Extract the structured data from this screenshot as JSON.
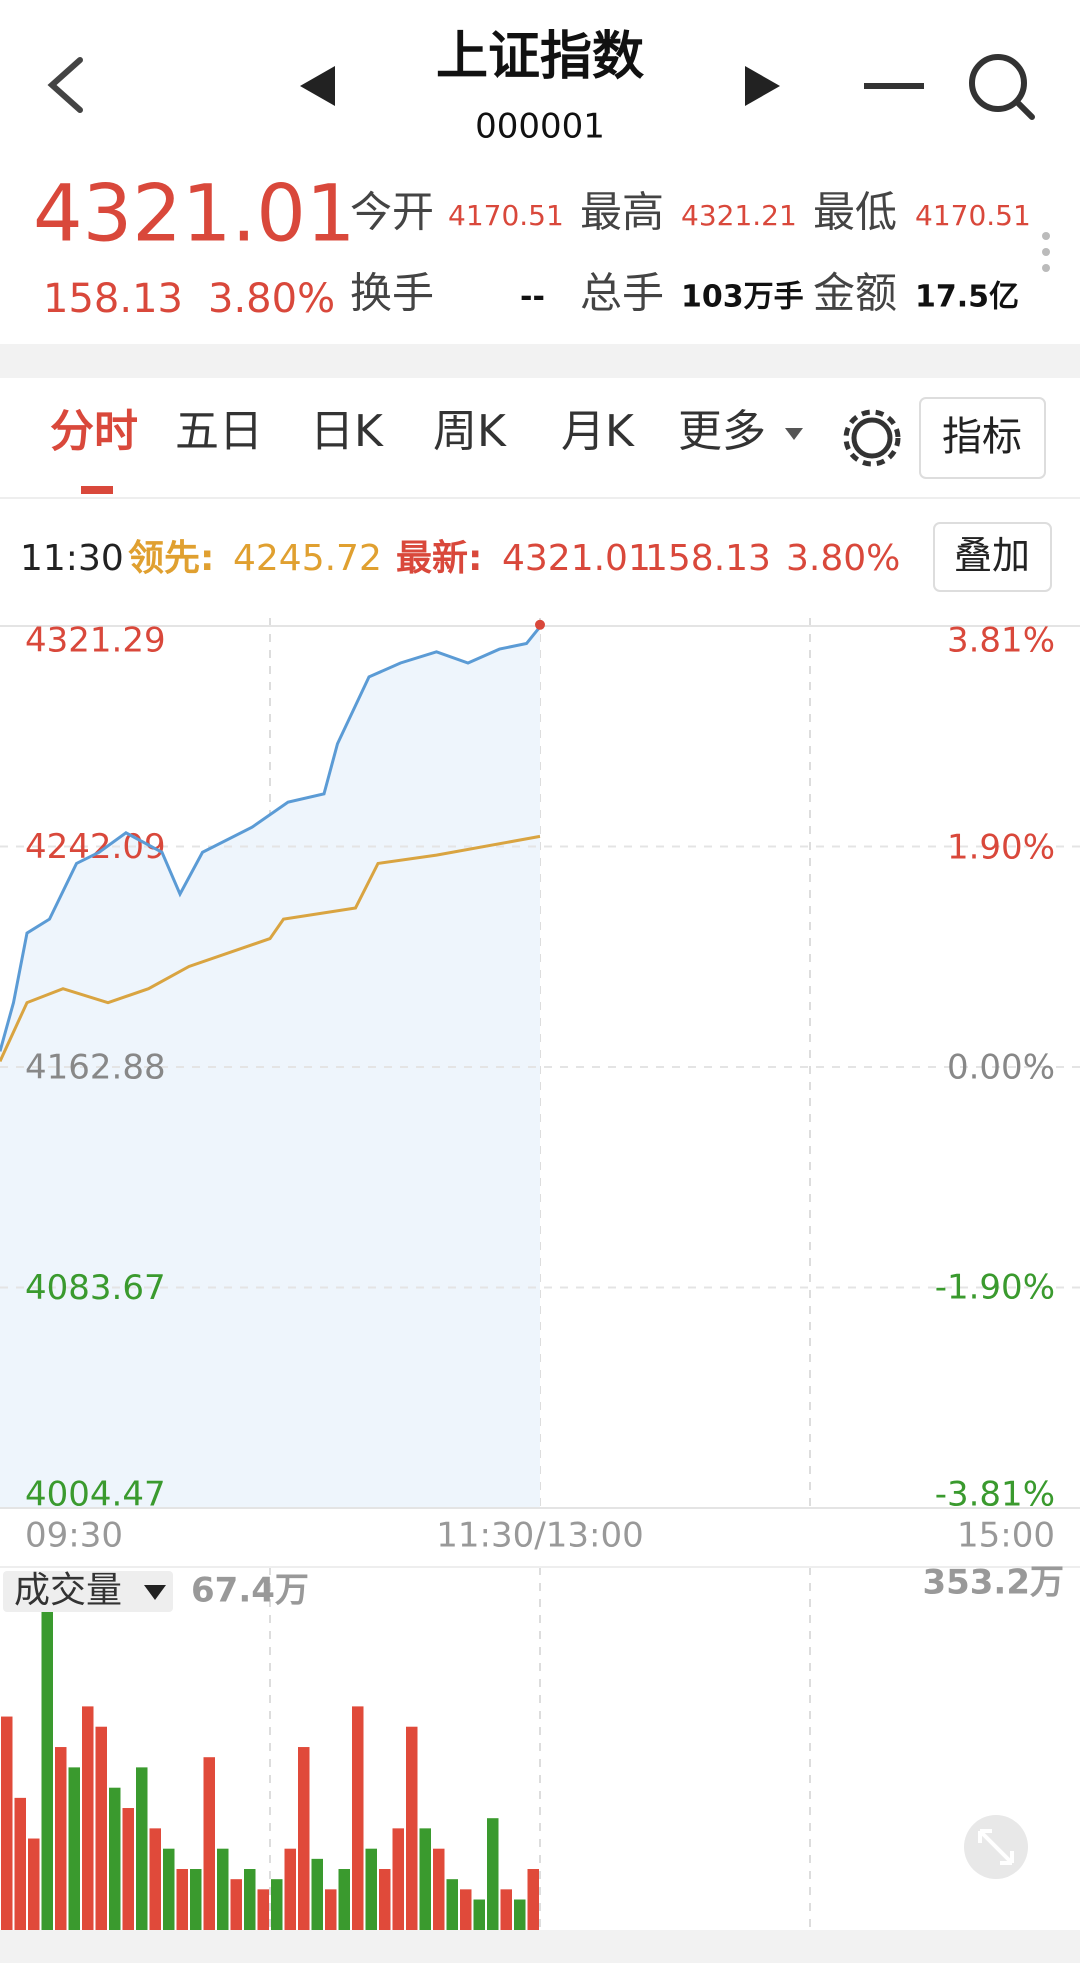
{
  "header": {
    "title": "上证指数",
    "code": "000001"
  },
  "quote": {
    "price": "4321.01",
    "change": "158.13",
    "percent": "3.80%",
    "fields": [
      {
        "label": "今开",
        "value": "4170.51"
      },
      {
        "label": "最高",
        "value": "4321.21"
      },
      {
        "label": "最低",
        "value": "4170.51"
      },
      {
        "label": "换手",
        "value": "--"
      },
      {
        "label": "总手",
        "value": "103万手"
      },
      {
        "label": "金额",
        "value": "17.5亿"
      }
    ]
  },
  "tabs": {
    "items": [
      "分时",
      "五日",
      "日K",
      "周K",
      "月K",
      "更多"
    ],
    "button": "指标"
  },
  "info": {
    "time": "11:30",
    "overlay": "叠加"
  },
  "chart_data": [
    {
      "type": "line",
      "xlim": [
        0,
        240
      ],
      "xticks": [
        {
          "value": 0,
          "label": "09:30"
        },
        {
          "value": 120,
          "label": "11:30/13:00"
        },
        {
          "value": 240,
          "label": "15:00"
        }
      ],
      "ylim": [
        4004.47,
        4321.29
      ],
      "yticks": [
        4321.29,
        4242.09,
        4162.88,
        4083.67,
        4004.47
      ],
      "y2lim": [
        -3.81,
        3.81
      ],
      "y2ticks": [
        {
          "value": 3.81,
          "label": "3.81%"
        },
        {
          "value": 1.9,
          "label": "1.90%"
        },
        {
          "value": 0,
          "label": "0.00%"
        },
        {
          "value": -1.9,
          "label": "-1.90%"
        },
        {
          "value": -3.81,
          "label": "-3.81%"
        }
      ],
      "grid": true,
      "series": [
        {
          "name": "最新:",
          "color": "#5b9bd5",
          "area": "#eef5fc",
          "x": [
            0,
            3,
            6,
            11,
            17,
            22,
            28,
            36,
            40,
            45,
            56,
            64,
            72,
            75,
            82,
            89,
            97,
            104,
            111,
            117,
            120
          ],
          "values": [
            4168.5,
            4186,
            4211,
            4216,
            4236,
            4240,
            4247,
            4240,
            4225,
            4240,
            4249,
            4258,
            4261,
            4279,
            4303,
            4308,
            4312,
            4308,
            4313,
            4315,
            4321.01
          ]
        },
        {
          "name": "领先:",
          "color": "#d9a441",
          "x": [
            0,
            6,
            14,
            24,
            33,
            42,
            60,
            63,
            79,
            84,
            97,
            120
          ],
          "values": [
            4164.9,
            4186,
            4191,
            4186,
            4191,
            4199,
            4209,
            4216,
            4220,
            4236,
            4239,
            4245.72
          ]
        }
      ]
    },
    {
      "type": "bar",
      "title": "成交量",
      "current": "67.4万",
      "xlim": [
        0,
        240
      ],
      "ylim": [
        0,
        353.2
      ],
      "yticks": [
        {
          "value": 353.2,
          "label": "353.2万"
        }
      ],
      "x": [
        0,
        3,
        6,
        9,
        12,
        15,
        18,
        21,
        24,
        27,
        30,
        33,
        36,
        39,
        42,
        45,
        48,
        51,
        54,
        57,
        60,
        63,
        66,
        69,
        72,
        75,
        78,
        81,
        84,
        87,
        90,
        93,
        96,
        99,
        102,
        105,
        108,
        111,
        114,
        117
      ],
      "values": [
        210,
        130,
        90,
        330,
        180,
        160,
        220,
        200,
        140,
        120,
        160,
        100,
        80,
        60,
        60,
        170,
        80,
        50,
        60,
        40,
        50,
        80,
        180,
        70,
        40,
        60,
        220,
        80,
        60,
        100,
        200,
        100,
        80,
        50,
        40,
        30,
        110,
        40,
        30,
        60
      ],
      "colors": [
        "#e04a3a",
        "#e04a3a",
        "#e04a3a",
        "#3a9a2e",
        "#e04a3a",
        "#3a9a2e",
        "#e04a3a",
        "#e04a3a",
        "#3a9a2e",
        "#e04a3a",
        "#3a9a2e",
        "#e04a3a",
        "#3a9a2e",
        "#e04a3a",
        "#3a9a2e",
        "#e04a3a",
        "#3a9a2e",
        "#e04a3a",
        "#3a9a2e",
        "#e04a3a",
        "#3a9a2e",
        "#e04a3a",
        "#e04a3a",
        "#3a9a2e",
        "#e04a3a",
        "#3a9a2e",
        "#e04a3a",
        "#3a9a2e",
        "#e04a3a",
        "#e04a3a",
        "#e04a3a",
        "#3a9a2e",
        "#e04a3a",
        "#3a9a2e",
        "#e04a3a",
        "#3a9a2e",
        "#3a9a2e",
        "#e04a3a",
        "#3a9a2e",
        "#e04a3a"
      ]
    }
  ]
}
